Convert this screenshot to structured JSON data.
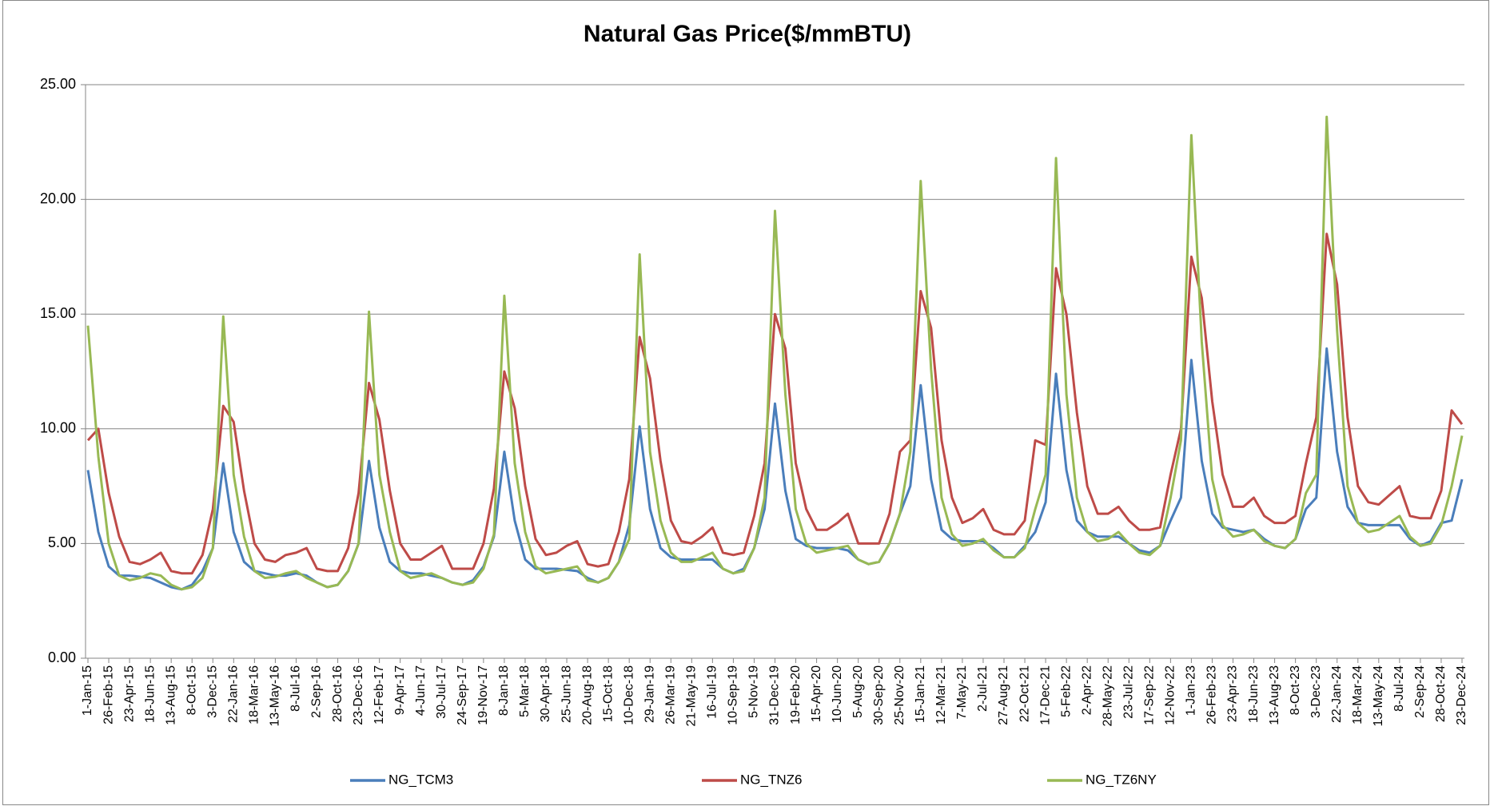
{
  "chart_data": {
    "type": "line",
    "title": "Natural Gas Price($/mmBTU)",
    "categories": [
      "1-Jan-15",
      null,
      "26-Feb-15",
      null,
      "23-Apr-15",
      null,
      "18-Jun-15",
      null,
      "13-Aug-15",
      null,
      "8-Oct-15",
      null,
      "3-Dec-15",
      null,
      "22-Jan-16",
      null,
      "18-Mar-16",
      null,
      "13-May-16",
      null,
      "8-Jul-16",
      null,
      "2-Sep-16",
      null,
      "28-Oct-16",
      null,
      "23-Dec-16",
      null,
      "12-Feb-17",
      null,
      "9-Apr-17",
      null,
      "4-Jun-17",
      null,
      "30-Jul-17",
      null,
      "24-Sep-17",
      null,
      "19-Nov-17",
      null,
      "8-Jan-18",
      null,
      "5-Mar-18",
      null,
      "30-Apr-18",
      null,
      "25-Jun-18",
      null,
      "20-Aug-18",
      null,
      "15-Oct-18",
      null,
      "10-Dec-18",
      null,
      "29-Jan-19",
      null,
      "26-Mar-19",
      null,
      "21-May-19",
      null,
      "16-Jul-19",
      null,
      "10-Sep-19",
      null,
      "5-Nov-19",
      null,
      "31-Dec-19",
      null,
      "19-Feb-20",
      null,
      "15-Apr-20",
      null,
      "10-Jun-20",
      null,
      "5-Aug-20",
      null,
      "30-Sep-20",
      null,
      "25-Nov-20",
      null,
      "15-Jan-21",
      null,
      "12-Mar-21",
      null,
      "7-May-21",
      null,
      "2-Jul-21",
      null,
      "27-Aug-21",
      null,
      "22-Oct-21",
      null,
      "17-Dec-21",
      null,
      "5-Feb-22",
      null,
      "2-Apr-22",
      null,
      "28-May-22",
      null,
      "23-Jul-22",
      null,
      "17-Sep-22",
      null,
      "12-Nov-22",
      null,
      "1-Jan-23",
      null,
      "26-Feb-23",
      null,
      "23-Apr-23",
      null,
      "18-Jun-23",
      null,
      "13-Aug-23",
      null,
      "8-Oct-23",
      null,
      "3-Dec-23",
      null,
      "22-Jan-24",
      null,
      "18-Mar-24",
      null,
      "13-May-24",
      null,
      "8-Jul-24",
      null,
      "2-Sep-24",
      null,
      "28-Oct-24",
      null,
      "23-Dec-24"
    ],
    "series": [
      {
        "name": "NG_TCM3",
        "color": "#4a7ebb",
        "values": [
          8.2,
          5.5,
          4.0,
          3.6,
          3.6,
          3.55,
          3.5,
          3.3,
          3.1,
          3.0,
          3.2,
          3.8,
          4.8,
          8.5,
          5.5,
          4.2,
          3.8,
          3.7,
          3.6,
          3.6,
          3.7,
          3.6,
          3.3,
          3.1,
          3.2,
          3.8,
          5.0,
          8.6,
          5.7,
          4.2,
          3.8,
          3.7,
          3.7,
          3.6,
          3.5,
          3.3,
          3.2,
          3.4,
          4.0,
          5.3,
          9.0,
          6.0,
          4.3,
          3.9,
          3.9,
          3.9,
          3.85,
          3.8,
          3.5,
          3.3,
          3.5,
          4.2,
          5.8,
          10.1,
          6.5,
          4.8,
          4.4,
          4.3,
          4.3,
          4.3,
          4.3,
          3.9,
          3.7,
          3.9,
          4.8,
          6.5,
          11.1,
          7.3,
          5.2,
          4.9,
          4.8,
          4.8,
          4.8,
          4.7,
          4.3,
          4.1,
          4.2,
          5.0,
          6.3,
          7.5,
          11.9,
          7.8,
          5.6,
          5.2,
          5.1,
          5.1,
          5.1,
          4.8,
          4.4,
          4.4,
          4.9,
          5.5,
          6.8,
          12.4,
          8.2,
          6.0,
          5.5,
          5.3,
          5.3,
          5.3,
          5.0,
          4.7,
          4.6,
          4.9,
          6.0,
          7.0,
          13.0,
          8.6,
          6.3,
          5.7,
          5.6,
          5.5,
          5.6,
          5.2,
          4.9,
          4.8,
          5.2,
          6.5,
          7.0,
          13.5,
          9.0,
          6.6,
          5.9,
          5.8,
          5.8,
          5.8,
          5.8,
          5.2,
          4.9,
          5.1,
          5.9,
          6.0,
          7.8
        ]
      },
      {
        "name": "NG_TNZ6",
        "color": "#be4b48",
        "values": [
          9.5,
          10.0,
          7.2,
          5.3,
          4.2,
          4.1,
          4.3,
          4.6,
          3.8,
          3.7,
          3.7,
          4.5,
          6.5,
          11.0,
          10.3,
          7.3,
          5.0,
          4.3,
          4.2,
          4.5,
          4.6,
          4.8,
          3.9,
          3.8,
          3.8,
          4.8,
          7.2,
          12.0,
          10.4,
          7.3,
          5.0,
          4.3,
          4.3,
          4.6,
          4.9,
          3.9,
          3.9,
          3.9,
          5.0,
          7.4,
          12.5,
          10.9,
          7.5,
          5.2,
          4.5,
          4.6,
          4.9,
          5.1,
          4.1,
          4.0,
          4.1,
          5.5,
          7.8,
          14.0,
          12.2,
          8.6,
          6.0,
          5.1,
          5.0,
          5.3,
          5.7,
          4.6,
          4.5,
          4.6,
          6.2,
          8.5,
          15.0,
          13.5,
          8.5,
          6.5,
          5.6,
          5.6,
          5.9,
          6.3,
          5.0,
          5.0,
          5.0,
          6.3,
          9.0,
          9.5,
          16.0,
          14.4,
          9.5,
          7.0,
          5.9,
          6.1,
          6.5,
          5.6,
          5.4,
          5.4,
          6.0,
          9.5,
          9.3,
          17.0,
          15.0,
          10.7,
          7.5,
          6.3,
          6.3,
          6.6,
          6.0,
          5.6,
          5.6,
          5.7,
          8.0,
          10.0,
          17.5,
          15.7,
          11.2,
          8.0,
          6.6,
          6.6,
          7.0,
          6.2,
          5.9,
          5.9,
          6.2,
          8.5,
          10.5,
          18.5,
          16.3,
          10.5,
          7.5,
          6.8,
          6.7,
          7.1,
          7.5,
          6.2,
          6.1,
          6.1,
          7.3,
          10.8,
          10.2
        ]
      },
      {
        "name": "NG_TZ6NY",
        "color": "#98b954",
        "values": [
          14.5,
          8.8,
          5.0,
          3.6,
          3.4,
          3.5,
          3.7,
          3.6,
          3.2,
          3.0,
          3.1,
          3.5,
          4.8,
          14.9,
          8.0,
          5.3,
          3.8,
          3.5,
          3.55,
          3.7,
          3.8,
          3.5,
          3.3,
          3.1,
          3.2,
          3.8,
          5.0,
          15.1,
          8.0,
          5.5,
          3.8,
          3.5,
          3.6,
          3.7,
          3.5,
          3.3,
          3.2,
          3.3,
          3.9,
          5.4,
          15.8,
          8.5,
          5.5,
          4.0,
          3.7,
          3.8,
          3.9,
          4.0,
          3.4,
          3.3,
          3.5,
          4.2,
          5.2,
          17.6,
          9.0,
          6.0,
          4.6,
          4.2,
          4.2,
          4.4,
          4.6,
          3.9,
          3.7,
          3.8,
          4.8,
          7.0,
          19.5,
          11.5,
          6.5,
          5.0,
          4.6,
          4.7,
          4.8,
          4.9,
          4.3,
          4.1,
          4.2,
          5.0,
          6.3,
          9.0,
          20.8,
          12.6,
          7.0,
          5.4,
          4.9,
          5.0,
          5.2,
          4.7,
          4.4,
          4.4,
          4.8,
          6.5,
          8.0,
          21.8,
          11.5,
          7.0,
          5.5,
          5.1,
          5.2,
          5.5,
          5.0,
          4.6,
          4.5,
          4.9,
          7.0,
          9.5,
          22.8,
          13.8,
          7.8,
          5.8,
          5.3,
          5.4,
          5.6,
          5.1,
          4.9,
          4.8,
          5.2,
          7.2,
          8.0,
          23.6,
          14.3,
          7.5,
          5.9,
          5.5,
          5.6,
          5.9,
          6.2,
          5.3,
          4.9,
          5.0,
          5.8,
          7.5,
          9.7
        ]
      }
    ],
    "ylim": [
      0,
      25
    ],
    "yticks": [
      {
        "value": 0,
        "label": "0.00"
      },
      {
        "value": 5,
        "label": "5.00"
      },
      {
        "value": 10,
        "label": "10.00"
      },
      {
        "value": 15,
        "label": "15.00"
      },
      {
        "value": 20,
        "label": "20.00"
      },
      {
        "value": 25,
        "label": "25.00"
      }
    ],
    "grid": true,
    "legend": "bottom"
  }
}
